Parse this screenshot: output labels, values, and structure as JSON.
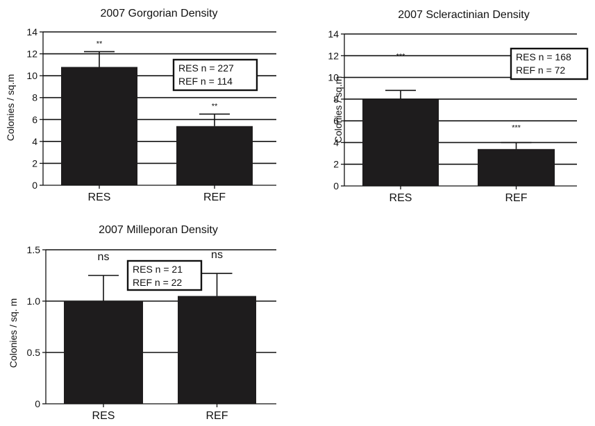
{
  "chart_data": [
    {
      "type": "bar",
      "title": "2007 Gorgorian Density",
      "ylabel": "Colonies / sq.m",
      "categories": [
        "RES",
        "REF"
      ],
      "values": [
        10.8,
        5.4
      ],
      "error_upper": [
        12.2,
        6.5
      ],
      "significance": [
        "**",
        "**"
      ],
      "ylim": [
        0,
        14
      ],
      "yticks": [
        "0",
        "2",
        "4",
        "6",
        "8",
        "10",
        "12",
        "14"
      ],
      "grid": true,
      "annotation": [
        "RES n = 227",
        "REF n = 114"
      ]
    },
    {
      "type": "bar",
      "title": "2007 Scleractinian Density",
      "ylabel": "Colonies / sq.m",
      "categories": [
        "RES",
        "REF"
      ],
      "values": [
        8.0,
        3.4
      ],
      "error_upper": [
        8.8,
        4.0
      ],
      "significance": [
        "***",
        "***"
      ],
      "ylim": [
        0,
        14
      ],
      "yticks": [
        "0",
        "2",
        "4",
        "6",
        "8",
        "10",
        "12",
        "14"
      ],
      "grid": true,
      "annotation": [
        "RES n = 168",
        "REF n = 72"
      ]
    },
    {
      "type": "bar",
      "title": "2007 Milleporan Density",
      "ylabel": "Colonies / sq. m",
      "categories": [
        "RES",
        "REF"
      ],
      "values": [
        1.0,
        1.05
      ],
      "error_upper": [
        1.25,
        1.27
      ],
      "significance": [
        "ns",
        "ns"
      ],
      "ylim": [
        0,
        1.5
      ],
      "yticks": [
        "0",
        "0.5",
        "1.0",
        "1.5"
      ],
      "grid": true,
      "annotation": [
        "RES n = 21",
        "REF n = 22"
      ]
    }
  ]
}
